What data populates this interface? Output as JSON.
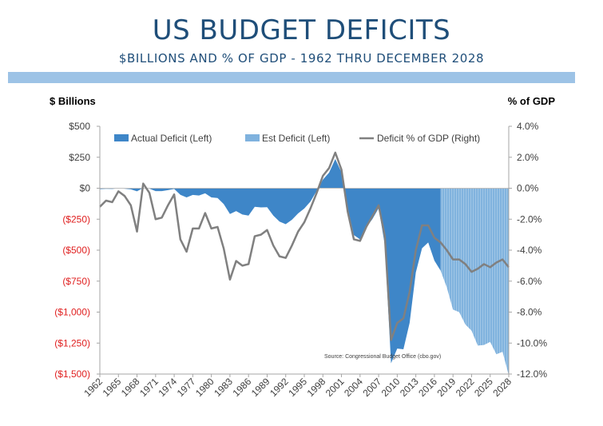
{
  "title": "US BUDGET DEFICITS",
  "subtitle": "$BILLIONS AND % OF GDP - 1962 THRU DECEMBER 2028",
  "source_note": "Source:  Congressional Budget Office (cbo.gov)",
  "colors": {
    "title": "#1f4e79",
    "band": "#9dc3e6",
    "actual": "#3e86c8",
    "estimate": "#7fb2de",
    "pct_line": "#808080",
    "negative_tick": "#e02020",
    "positive_tick": "#404040"
  },
  "chart_data": {
    "type": "area",
    "left_axis": {
      "title": "$ Billions",
      "range": [
        -1500,
        500
      ],
      "ticks": [
        500,
        250,
        0,
        -250,
        -500,
        -750,
        -1000,
        -1250,
        -1500
      ],
      "tick_labels": [
        "$500",
        "$250",
        "$0",
        "($250)",
        "($500)",
        "($750)",
        "($1,000)",
        "($1,250)",
        "($1,500)"
      ]
    },
    "right_axis": {
      "title": "% of GDP",
      "range": [
        -12,
        4
      ],
      "ticks": [
        4,
        2,
        0,
        -2,
        -4,
        -6,
        -8,
        -10,
        -12
      ],
      "tick_labels": [
        "4.0%",
        "2.0%",
        "0.0%",
        "-2.0%",
        "-4.0%",
        "-6.0%",
        "-8.0%",
        "-10.0%",
        "-12.0%"
      ]
    },
    "x_axis": {
      "range": [
        1962,
        2028
      ],
      "tick_labels": [
        "1962",
        "1965",
        "1968",
        "1971",
        "1974",
        "1977",
        "1980",
        "1983",
        "1986",
        "1989",
        "1992",
        "1995",
        "1998",
        "2001",
        "2004",
        "2007",
        "2010",
        "2013",
        "2016",
        "2019",
        "2022",
        "2025",
        "2028"
      ]
    },
    "legend": {
      "placement": "top",
      "items": [
        "Actual Deficit (Left)",
        "Est Deficit (Left)",
        "Deficit % of GDP (Right)"
      ]
    },
    "grid": false,
    "series": [
      {
        "name": "Actual Deficit (Left)",
        "type": "area",
        "axis": "left",
        "x": [
          1962,
          1963,
          1964,
          1965,
          1966,
          1967,
          1968,
          1969,
          1970,
          1971,
          1972,
          1973,
          1974,
          1975,
          1976,
          1977,
          1978,
          1979,
          1980,
          1981,
          1982,
          1983,
          1984,
          1985,
          1986,
          1987,
          1988,
          1989,
          1990,
          1991,
          1992,
          1993,
          1994,
          1995,
          1996,
          1997,
          1998,
          1999,
          2000,
          2001,
          2002,
          2003,
          2004,
          2005,
          2006,
          2007,
          2008,
          2009,
          2010,
          2011,
          2012,
          2013,
          2014,
          2015,
          2016,
          2017
        ],
        "values": [
          -7,
          -5,
          -6,
          -1,
          -4,
          -9,
          -25,
          3,
          -3,
          -23,
          -23,
          -15,
          -6,
          -53,
          -74,
          -54,
          -59,
          -41,
          -74,
          -79,
          -128,
          -208,
          -185,
          -212,
          -221,
          -150,
          -155,
          -153,
          -221,
          -269,
          -290,
          -255,
          -203,
          -164,
          -107,
          -22,
          69,
          126,
          236,
          128,
          -158,
          -378,
          -413,
          -318,
          -248,
          -161,
          -459,
          -1413,
          -1294,
          -1300,
          -1087,
          -680,
          -485,
          -438,
          -585,
          -665
        ]
      },
      {
        "name": "Est Deficit (Left)",
        "type": "area",
        "axis": "left",
        "x": [
          2017,
          2018,
          2019,
          2020,
          2021,
          2022,
          2023,
          2024,
          2025,
          2026,
          2027,
          2028
        ],
        "values": [
          -665,
          -800,
          -980,
          -1000,
          -1100,
          -1150,
          -1270,
          -1265,
          -1240,
          -1340,
          -1320,
          -1510
        ]
      },
      {
        "name": "Deficit % of GDP (Right)",
        "type": "line",
        "axis": "right",
        "x": [
          1962,
          1963,
          1964,
          1965,
          1966,
          1967,
          1968,
          1969,
          1970,
          1971,
          1972,
          1973,
          1974,
          1975,
          1976,
          1977,
          1978,
          1979,
          1980,
          1981,
          1982,
          1983,
          1984,
          1985,
          1986,
          1987,
          1988,
          1989,
          1990,
          1991,
          1992,
          1993,
          1994,
          1995,
          1996,
          1997,
          1998,
          1999,
          2000,
          2001,
          2002,
          2003,
          2004,
          2005,
          2006,
          2007,
          2008,
          2009,
          2010,
          2011,
          2012,
          2013,
          2014,
          2015,
          2016,
          2017,
          2018,
          2019,
          2020,
          2021,
          2022,
          2023,
          2024,
          2025,
          2026,
          2027,
          2028
        ],
        "values": [
          -1.2,
          -0.8,
          -0.9,
          -0.2,
          -0.5,
          -1.1,
          -2.8,
          0.3,
          -0.3,
          -2.0,
          -1.9,
          -1.1,
          -0.4,
          -3.3,
          -4.1,
          -2.6,
          -2.6,
          -1.6,
          -2.6,
          -2.5,
          -3.9,
          -5.9,
          -4.7,
          -5.0,
          -4.9,
          -3.1,
          -3.0,
          -2.7,
          -3.7,
          -4.4,
          -4.5,
          -3.7,
          -2.8,
          -2.2,
          -1.3,
          -0.3,
          0.8,
          1.3,
          2.3,
          1.2,
          -1.5,
          -3.3,
          -3.4,
          -2.5,
          -1.8,
          -1.1,
          -3.1,
          -9.8,
          -8.7,
          -8.4,
          -6.7,
          -4.0,
          -2.4,
          -2.4,
          -3.2,
          -3.5,
          -4.0,
          -4.6,
          -4.6,
          -4.9,
          -5.4,
          -5.2,
          -4.9,
          -5.1,
          -4.8,
          -4.6,
          -5.1
        ]
      }
    ]
  }
}
